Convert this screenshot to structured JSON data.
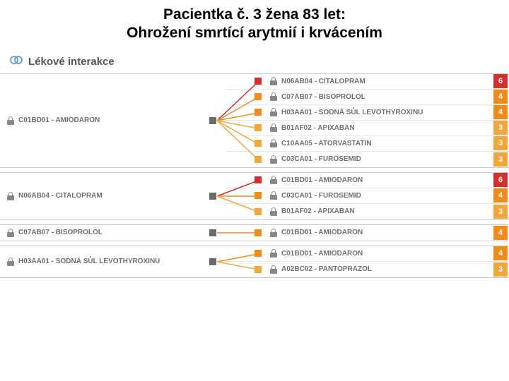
{
  "title_line1": "Pacientka č. 3 žena 83 let:",
  "title_line2": "Ohrožení smrtící arytmií i krvácením",
  "section_label": "Lékové interakce",
  "colors": {
    "severity_6": "#d32f2f",
    "severity_4": "#ef8c1a",
    "severity_3": "#f0a83c",
    "handle_gray": "#6b6b6b"
  },
  "groups": [
    {
      "left": "C01BD01 - AMIODARON",
      "rows": [
        {
          "label": "N06AB04 - CITALOPRAM",
          "sev": 6,
          "color": "#d32f2f"
        },
        {
          "label": "C07AB07 - BISOPROLOL",
          "sev": 4,
          "color": "#ef8c1a"
        },
        {
          "label": "H03AA01 - SODNÁ SŮL LEVOTHYROXINU",
          "sev": 4,
          "color": "#ef8c1a"
        },
        {
          "label": "B01AF02 - APIXABAN",
          "sev": 3,
          "color": "#f0a83c"
        },
        {
          "label": "C10AA05 - ATORVASTATIN",
          "sev": 3,
          "color": "#f0a83c"
        },
        {
          "label": "C03CA01 - FUROSEMID",
          "sev": 3,
          "color": "#f0a83c"
        }
      ]
    },
    {
      "left": "N06AB04 - CITALOPRAM",
      "rows": [
        {
          "label": "C01BD01 - AMIODARON",
          "sev": 6,
          "color": "#d32f2f"
        },
        {
          "label": "C03CA01 - FUROSEMID",
          "sev": 4,
          "color": "#ef8c1a"
        },
        {
          "label": "B01AF02 - APIXABAN",
          "sev": 3,
          "color": "#f0a83c"
        }
      ]
    },
    {
      "left": "C07AB07 - BISOPROLOL",
      "rows": [
        {
          "label": "C01BD01 - AMIODARON",
          "sev": 4,
          "color": "#ef8c1a"
        }
      ]
    },
    {
      "left": "H03AA01 - SODNÁ SŮL LEVOTHYROXINU",
      "rows": [
        {
          "label": "C01BD01 - AMIODARON",
          "sev": 4,
          "color": "#ef8c1a"
        },
        {
          "label": "A02BC02 - PANTOPRAZOL",
          "sev": 3,
          "color": "#f0a83c"
        }
      ]
    }
  ]
}
